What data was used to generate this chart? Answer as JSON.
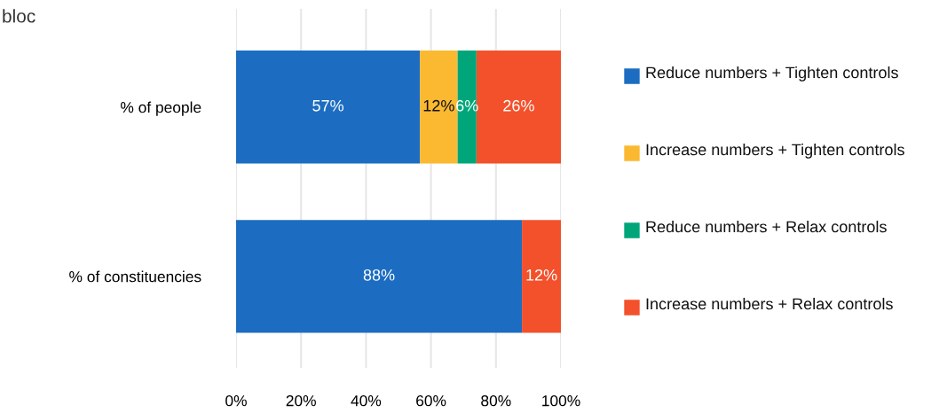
{
  "chart_data": {
    "type": "bar",
    "orientation": "horizontal",
    "stacked": true,
    "title": "bloc",
    "categories": [
      "% of people",
      "% of constituencies"
    ],
    "series": [
      {
        "name": "Reduce numbers + Tighten controls",
        "color": "#1c6dc1",
        "values": [
          56.6,
          88
        ],
        "value_labels": [
          "57%",
          "88%"
        ]
      },
      {
        "name": "Increase numbers + Tighten controls",
        "color": "#fbb931",
        "values": [
          11.6,
          0
        ],
        "value_labels": [
          "12%",
          null
        ]
      },
      {
        "name": "Reduce numbers + Relax controls",
        "color": "#00a67a",
        "values": [
          5.8,
          0
        ],
        "value_labels": [
          "6%",
          null
        ]
      },
      {
        "name": "Increase numbers + Relax controls",
        "color": "#f2512b",
        "values": [
          26,
          12
        ],
        "value_labels": [
          "26%",
          "12%"
        ]
      }
    ],
    "xlim": [
      0,
      100
    ],
    "xticks": [
      {
        "value": 0,
        "label": "0%"
      },
      {
        "value": 20,
        "label": "20%"
      },
      {
        "value": 40,
        "label": "40%"
      },
      {
        "value": 60,
        "label": "60%"
      },
      {
        "value": 80,
        "label": "80%"
      },
      {
        "value": 100,
        "label": "100%"
      }
    ],
    "grid": "x",
    "legend": "right"
  }
}
